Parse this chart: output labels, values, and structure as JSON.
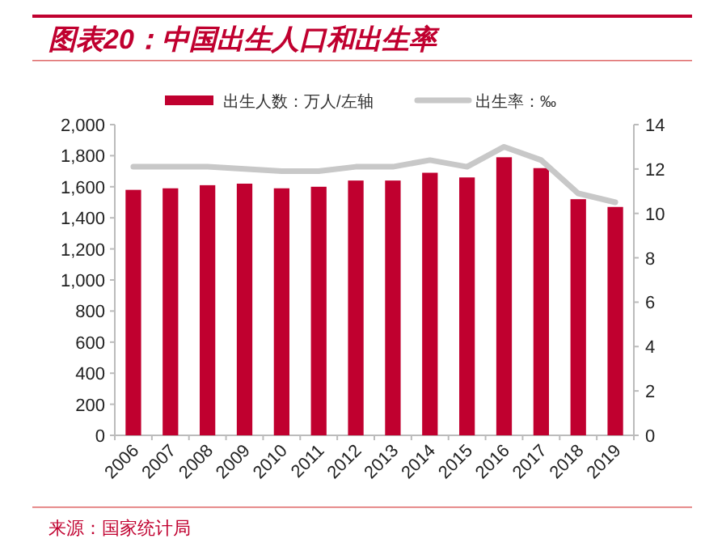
{
  "chart_data": {
    "type": "bar",
    "title": "图表20：中国出生人口和出生率",
    "categories": [
      "2006",
      "2007",
      "2008",
      "2009",
      "2010",
      "2011",
      "2012",
      "2013",
      "2014",
      "2015",
      "2016",
      "2017",
      "2018",
      "2019"
    ],
    "series": [
      {
        "name": "出生人数：万人/左轴",
        "color": "#c0002f",
        "values": [
          1580,
          1590,
          1610,
          1620,
          1590,
          1600,
          1640,
          1640,
          1690,
          1660,
          1790,
          1720,
          1520,
          1470
        ]
      },
      {
        "name": "出生率：‰",
        "color": "#c8c8c8",
        "type": "line",
        "axis": "y2",
        "values": [
          12.1,
          12.1,
          12.1,
          12.0,
          11.9,
          11.9,
          12.1,
          12.1,
          12.4,
          12.1,
          13.0,
          12.4,
          10.9,
          10.5
        ]
      }
    ],
    "ylim": [
      0,
      2000
    ],
    "yticks": [
      0,
      200,
      400,
      600,
      800,
      {
        "value": 1000,
        "label": "1,000"
      },
      {
        "value": 1200,
        "label": "1,200"
      },
      {
        "value": 1400,
        "label": "1,400"
      },
      {
        "value": 1600,
        "label": "1,600"
      },
      {
        "value": 1800,
        "label": "1,800"
      },
      {
        "value": 2000,
        "label": "2,000"
      }
    ],
    "y2lim": [
      0,
      14
    ],
    "y2ticks": [
      0,
      2,
      4,
      6,
      8,
      10,
      12,
      14
    ],
    "legend": "top",
    "annotations": [
      "来源：国家统计局"
    ]
  }
}
